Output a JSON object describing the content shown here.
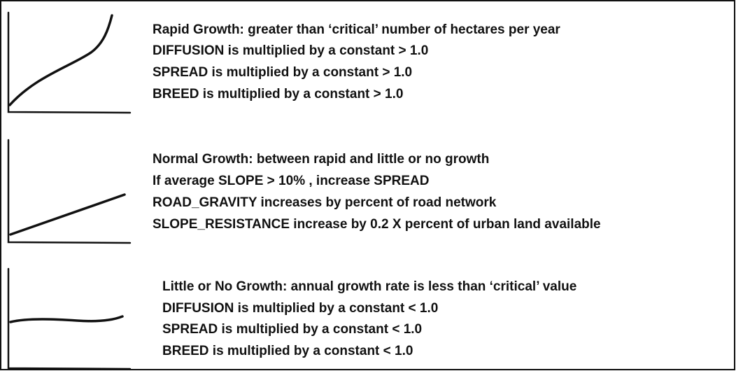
{
  "panels": [
    {
      "lines": [
        "Rapid Growth: greater than ‘critical’ number of hectares per year",
        "DIFFUSION is multiplied by a constant > 1.0",
        "SPREAD is multiplied by a constant > 1.0",
        "BREED is multiplied by a constant > 1.0"
      ]
    },
    {
      "lines": [
        "Normal Growth: between rapid and little or no growth",
        "If average SLOPE > 10% , increase SPREAD",
        "ROAD_GRAVITY increases by percent of road network",
        "SLOPE_RESISTANCE increase by 0.2 X percent of urban land available"
      ]
    },
    {
      "lines": [
        "Little or No Growth: annual growth rate is less than ‘critical’ value",
        "DIFFUSION is multiplied by a constant < 1.0",
        "SPREAD is multiplied by a constant < 1.0",
        "BREED is multiplied by a constant < 1.0"
      ]
    }
  ]
}
